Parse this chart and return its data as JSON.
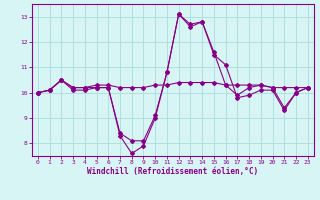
{
  "xlabel": "Windchill (Refroidissement éolien,°C)",
  "x": [
    0,
    1,
    2,
    3,
    4,
    5,
    6,
    7,
    8,
    9,
    10,
    11,
    12,
    13,
    14,
    15,
    16,
    17,
    18,
    19,
    20,
    21,
    22,
    23
  ],
  "line1": [
    10.0,
    10.1,
    10.5,
    10.1,
    10.1,
    10.2,
    10.2,
    8.3,
    7.6,
    7.9,
    9.0,
    10.8,
    13.1,
    12.6,
    12.8,
    11.5,
    11.1,
    9.8,
    9.9,
    10.1,
    10.1,
    9.3,
    10.0,
    10.2
  ],
  "line2": [
    10.0,
    10.1,
    10.5,
    10.2,
    10.2,
    10.2,
    10.2,
    8.4,
    8.1,
    8.1,
    9.1,
    10.8,
    13.1,
    12.7,
    12.8,
    11.6,
    10.3,
    9.9,
    10.2,
    10.3,
    10.2,
    9.4,
    10.0,
    10.2
  ],
  "line3": [
    10.0,
    10.1,
    10.5,
    10.2,
    10.2,
    10.3,
    10.3,
    10.2,
    10.2,
    10.2,
    10.3,
    10.3,
    10.4,
    10.4,
    10.4,
    10.4,
    10.3,
    10.3,
    10.3,
    10.3,
    10.2,
    10.2,
    10.2,
    10.2
  ],
  "line_color": "#880088",
  "bg_color": "#d8f5f5",
  "grid_color": "#aadddd",
  "ylim": [
    7.5,
    13.5
  ],
  "yticks": [
    8,
    9,
    10,
    11,
    12,
    13
  ],
  "xticks": [
    0,
    1,
    2,
    3,
    4,
    5,
    6,
    7,
    8,
    9,
    10,
    11,
    12,
    13,
    14,
    15,
    16,
    17,
    18,
    19,
    20,
    21,
    22,
    23
  ]
}
